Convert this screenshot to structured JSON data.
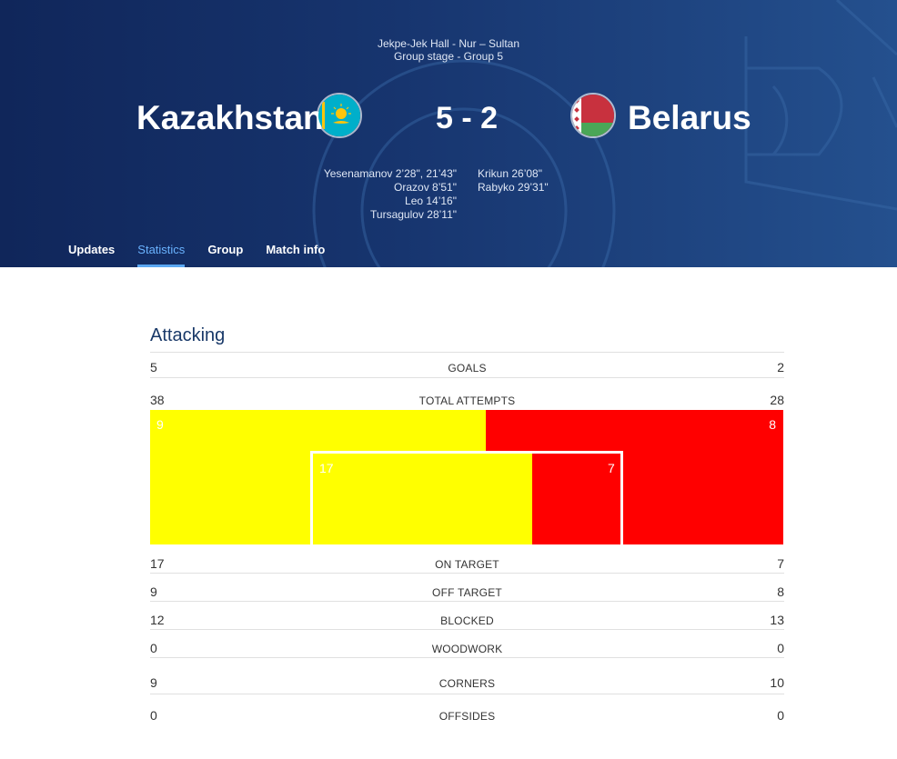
{
  "match": {
    "venue": "Jekpe-Jek Hall - Nur – Sultan",
    "stage": "Group stage - Group 5",
    "home_team": "Kazakhstan",
    "away_team": "Belarus",
    "score": "5 - 2",
    "home_scorers": [
      "Yesenamanov 2’28\", 21’43\"",
      "Orazov 8’51\"",
      "Leo 14’16\"",
      "Tursagulov 28’11\""
    ],
    "away_scorers": [
      "Krikun 26’08\"",
      "Rabyko 29’31\""
    ]
  },
  "tabs": [
    "Updates",
    "Statistics",
    "Group",
    "Match info"
  ],
  "active_tab": "Statistics",
  "section_title": "Attacking",
  "stats": {
    "goals": {
      "label": "GOALS",
      "home": "5",
      "away": "2"
    },
    "total_attempts": {
      "label": "TOTAL ATTEMPTS",
      "home": "38",
      "away": "28"
    },
    "on_target": {
      "label": "ON TARGET",
      "home": "17",
      "away": "7"
    },
    "off_target": {
      "label": "OFF TARGET",
      "home": "9",
      "away": "8"
    },
    "blocked": {
      "label": "BLOCKED",
      "home": "12",
      "away": "13"
    },
    "woodwork": {
      "label": "WOODWORK",
      "home": "0",
      "away": "0"
    },
    "corners": {
      "label": "CORNERS",
      "home": "9",
      "away": "10"
    },
    "offsides": {
      "label": "OFFSIDES",
      "home": "0",
      "away": "0"
    }
  },
  "attempts_viz": {
    "off_target_home": "9",
    "off_target_away": "8",
    "on_target_home": "17",
    "on_target_away": "7"
  },
  "colors": {
    "home": "#ffff00",
    "away": "#ff0000",
    "header_bg": "#17356f",
    "accent": "#5aa7f2",
    "section_title": "#183868"
  },
  "icons": {
    "home_flag": "kazakhstan-flag",
    "away_flag": "belarus-flag"
  }
}
